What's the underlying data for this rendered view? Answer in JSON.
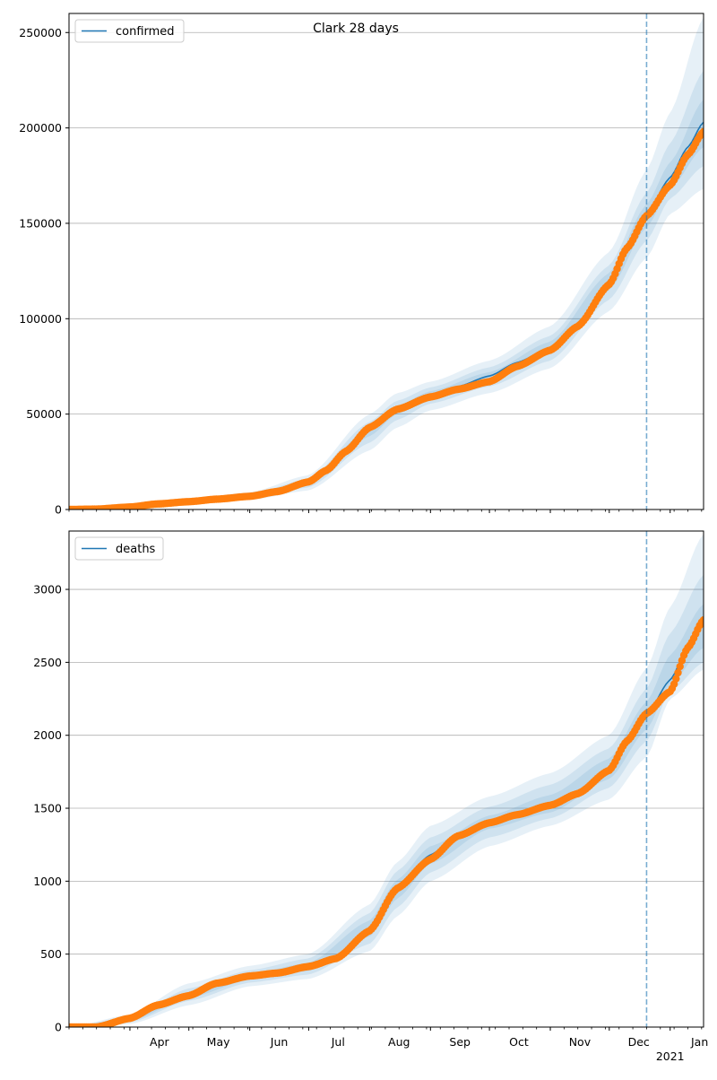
{
  "chart_data": [
    {
      "type": "line",
      "title": "Clark 28 days",
      "xlabel": "",
      "ylabel": "",
      "x_range": [
        "2020-03-01",
        "2021-01-18"
      ],
      "ylim": [
        0,
        260000
      ],
      "yticks": [
        0,
        50000,
        100000,
        150000,
        200000,
        250000
      ],
      "ytick_labels": [
        "0",
        "50000",
        "100000",
        "150000",
        "200000",
        "250000"
      ],
      "grid": "horizontal",
      "legend_position": "top-left",
      "vline_date": "2020-12-20",
      "series": [
        {
          "name": "confirmed",
          "type": "line",
          "color": "#1f77b4",
          "x": [
            "2020-03-01",
            "2020-03-15",
            "2020-04-01",
            "2020-04-15",
            "2020-05-01",
            "2020-05-15",
            "2020-06-01",
            "2020-06-15",
            "2020-07-01",
            "2020-07-10",
            "2020-07-20",
            "2020-08-01",
            "2020-08-15",
            "2020-09-01",
            "2020-09-15",
            "2020-10-01",
            "2020-10-15",
            "2020-11-01",
            "2020-11-15",
            "2020-12-01",
            "2020-12-10",
            "2020-12-20",
            "2021-01-01",
            "2021-01-10",
            "2021-01-18"
          ],
          "y": [
            0,
            300,
            1200,
            2800,
            4200,
            5500,
            7000,
            9500,
            14000,
            20000,
            30000,
            42000,
            53000,
            60000,
            64500,
            70000,
            77000,
            85000,
            97000,
            120000,
            138000,
            155000,
            174000,
            190000,
            203000
          ]
        },
        {
          "name": "",
          "type": "scatter",
          "color": "#ff7f0e",
          "x": [
            "2020-03-01",
            "2020-03-15",
            "2020-04-01",
            "2020-04-15",
            "2020-05-01",
            "2020-05-15",
            "2020-06-01",
            "2020-06-15",
            "2020-07-01",
            "2020-07-10",
            "2020-07-20",
            "2020-08-01",
            "2020-08-15",
            "2020-09-01",
            "2020-09-15",
            "2020-10-01",
            "2020-10-15",
            "2020-11-01",
            "2020-11-15",
            "2020-12-01",
            "2020-12-10",
            "2020-12-20",
            "2021-01-01",
            "2021-01-10",
            "2021-01-18"
          ],
          "y": [
            0,
            200,
            1300,
            2900,
            4100,
            5400,
            6900,
            9400,
            14500,
            20500,
            30500,
            43000,
            52500,
            59000,
            63000,
            67000,
            75000,
            83500,
            96000,
            118000,
            137000,
            154000,
            170000,
            186000,
            198000
          ]
        }
      ],
      "bands": [
        {
          "x": [
            "2020-03-01",
            "2020-04-01",
            "2020-05-01",
            "2020-06-01",
            "2020-07-01",
            "2020-08-01",
            "2020-08-15",
            "2020-09-01",
            "2020-10-01",
            "2020-11-01",
            "2020-12-01",
            "2020-12-20",
            "2021-01-01",
            "2021-01-18"
          ],
          "lower": [
            0,
            700,
            3000,
            5000,
            10000,
            31000,
            43000,
            52000,
            61000,
            74000,
            104000,
            132000,
            155000,
            168000
          ],
          "upper": [
            0,
            1800,
            5500,
            9000,
            18000,
            50000,
            61000,
            67000,
            78000,
            96000,
            135000,
            178000,
            208000,
            258000
          ]
        },
        {
          "x": [
            "2020-03-01",
            "2020-04-01",
            "2020-05-01",
            "2020-06-01",
            "2020-07-01",
            "2020-08-01",
            "2020-08-15",
            "2020-09-01",
            "2020-10-01",
            "2020-11-01",
            "2020-12-01",
            "2020-12-20",
            "2021-01-01",
            "2021-01-18"
          ],
          "lower": [
            0,
            900,
            3400,
            5800,
            11500,
            35000,
            47000,
            55500,
            64500,
            78000,
            110000,
            141000,
            163000,
            180000
          ],
          "upper": [
            0,
            1500,
            4900,
            8200,
            16000,
            46000,
            57000,
            64000,
            74500,
            91000,
            128000,
            166000,
            192000,
            230000
          ]
        },
        {
          "x": [
            "2020-03-01",
            "2020-04-01",
            "2020-05-01",
            "2020-06-01",
            "2020-07-01",
            "2020-08-01",
            "2020-08-15",
            "2020-09-01",
            "2020-10-01",
            "2020-11-01",
            "2020-12-01",
            "2020-12-20",
            "2021-01-01",
            "2021-01-18"
          ],
          "lower": [
            0,
            1050,
            3800,
            6400,
            12800,
            38500,
            50000,
            58000,
            67500,
            81500,
            115000,
            148000,
            168000,
            190000
          ],
          "upper": [
            0,
            1350,
            4500,
            7600,
            15000,
            43000,
            54500,
            62000,
            72000,
            88000,
            124000,
            160000,
            182000,
            215000
          ]
        }
      ]
    },
    {
      "type": "line",
      "title": "",
      "xlabel": "",
      "ylabel": "",
      "x_range": [
        "2020-03-01",
        "2021-01-18"
      ],
      "ylim": [
        0,
        3400
      ],
      "yticks": [
        0,
        500,
        1000,
        1500,
        2000,
        2500,
        3000
      ],
      "ytick_labels": [
        "0",
        "500",
        "1000",
        "1500",
        "2000",
        "2500",
        "3000"
      ],
      "grid": "horizontal",
      "legend_position": "top-left",
      "vline_date": "2020-12-20",
      "series": [
        {
          "name": "deaths",
          "type": "line",
          "color": "#1f77b4",
          "x": [
            "2020-03-01",
            "2020-03-15",
            "2020-04-01",
            "2020-04-15",
            "2020-05-01",
            "2020-05-15",
            "2020-06-01",
            "2020-06-15",
            "2020-07-01",
            "2020-07-15",
            "2020-08-01",
            "2020-08-15",
            "2020-09-01",
            "2020-09-15",
            "2020-10-01",
            "2020-10-15",
            "2020-11-01",
            "2020-11-15",
            "2020-12-01",
            "2020-12-10",
            "2020-12-20",
            "2021-01-01",
            "2021-01-10",
            "2021-01-18"
          ],
          "y": [
            0,
            0,
            50,
            140,
            220,
            300,
            345,
            375,
            410,
            480,
            680,
            960,
            1180,
            1320,
            1400,
            1460,
            1520,
            1610,
            1770,
            1950,
            2140,
            2380,
            2600,
            2760
          ]
        },
        {
          "name": "",
          "type": "scatter",
          "color": "#ff7f0e",
          "x": [
            "2020-03-01",
            "2020-03-15",
            "2020-04-01",
            "2020-04-15",
            "2020-05-01",
            "2020-05-15",
            "2020-06-01",
            "2020-06-15",
            "2020-07-01",
            "2020-07-15",
            "2020-08-01",
            "2020-08-15",
            "2020-09-01",
            "2020-09-15",
            "2020-10-01",
            "2020-10-15",
            "2020-11-01",
            "2020-11-15",
            "2020-12-01",
            "2020-12-10",
            "2020-12-20",
            "2021-01-01",
            "2021-01-10",
            "2021-01-18"
          ],
          "y": [
            0,
            0,
            60,
            150,
            215,
            300,
            350,
            370,
            415,
            470,
            660,
            950,
            1150,
            1310,
            1400,
            1455,
            1520,
            1600,
            1760,
            1960,
            2150,
            2300,
            2600,
            2790
          ]
        }
      ],
      "bands": [
        {
          "x": [
            "2020-03-01",
            "2020-04-01",
            "2020-05-01",
            "2020-06-01",
            "2020-07-01",
            "2020-08-01",
            "2020-08-15",
            "2020-09-01",
            "2020-10-01",
            "2020-11-01",
            "2020-12-01",
            "2020-12-20",
            "2021-01-01",
            "2021-01-18"
          ],
          "lower": [
            0,
            20,
            150,
            280,
            330,
            520,
            760,
            1000,
            1240,
            1380,
            1560,
            1850,
            2250,
            2450
          ],
          "upper": [
            0,
            85,
            300,
            420,
            500,
            840,
            1130,
            1380,
            1580,
            1740,
            2000,
            2460,
            2880,
            3380
          ]
        },
        {
          "x": [
            "2020-03-01",
            "2020-04-01",
            "2020-05-01",
            "2020-06-01",
            "2020-07-01",
            "2020-08-01",
            "2020-08-15",
            "2020-09-01",
            "2020-10-01",
            "2020-11-01",
            "2020-12-01",
            "2020-12-20",
            "2021-01-01",
            "2021-01-18"
          ],
          "lower": [
            0,
            32,
            180,
            305,
            360,
            570,
            820,
            1060,
            1300,
            1430,
            1640,
            1960,
            2300,
            2500
          ],
          "upper": [
            0,
            70,
            265,
            390,
            470,
            780,
            1070,
            1300,
            1510,
            1660,
            1910,
            2320,
            2700,
            3100
          ]
        },
        {
          "x": [
            "2020-03-01",
            "2020-04-01",
            "2020-05-01",
            "2020-06-01",
            "2020-07-01",
            "2020-08-01",
            "2020-08-15",
            "2020-09-01",
            "2020-10-01",
            "2020-11-01",
            "2020-12-01",
            "2020-12-20",
            "2021-01-01",
            "2021-01-18"
          ],
          "lower": [
            0,
            42,
            200,
            325,
            385,
            620,
            880,
            1120,
            1360,
            1470,
            1700,
            2040,
            2350,
            2600
          ],
          "upper": [
            0,
            58,
            240,
            365,
            440,
            730,
            1010,
            1240,
            1450,
            1590,
            1840,
            2230,
            2550,
            2900
          ]
        }
      ]
    }
  ],
  "x_axis": {
    "months": [
      {
        "date": "2020-04-01",
        "label": "Apr"
      },
      {
        "date": "2020-05-01",
        "label": "May"
      },
      {
        "date": "2020-06-01",
        "label": "Jun"
      },
      {
        "date": "2020-07-01",
        "label": "Jul"
      },
      {
        "date": "2020-08-01",
        "label": "Aug"
      },
      {
        "date": "2020-09-01",
        "label": "Sep"
      },
      {
        "date": "2020-10-01",
        "label": "Oct"
      },
      {
        "date": "2020-11-01",
        "label": "Nov"
      },
      {
        "date": "2020-12-01",
        "label": "Dec"
      },
      {
        "date": "2021-01-01",
        "label": "Jan"
      }
    ],
    "year_label": "2021"
  },
  "colors": {
    "line": "#1f77b4",
    "points": "#ff7f0e",
    "band": "#1f77b4",
    "grid": "#b0b0b0",
    "vline": "#1f77b4"
  }
}
